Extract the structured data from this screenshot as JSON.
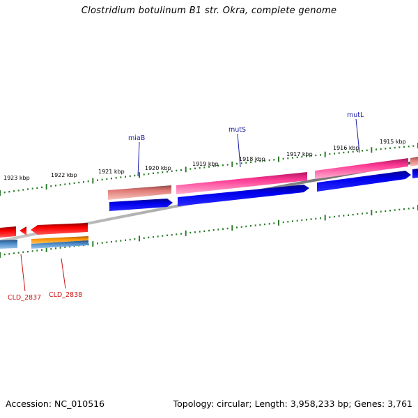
{
  "title": "Clostridium botulinum B1 str. Okra, complete genome",
  "footer": {
    "accession": "Accession: NC_010516",
    "summary": "Topology: circular; Length: 3,958,233 bp; Genes: 3,761"
  },
  "kbp_labels": [
    "1923 kbp",
    "1922 kbp",
    "1921 kbp",
    "1920 kbp",
    "1919 kbp",
    "1918 kbp",
    "1917 kbp",
    "1916 kbp",
    "1915 kbp"
  ],
  "upper_gene_labels": [
    {
      "text": "miaB",
      "color": "#1a1aa8"
    },
    {
      "text": "mutS",
      "color": "#1a1aa8"
    },
    {
      "text": "mutL",
      "color": "#1a1aa8"
    }
  ],
  "lower_gene_labels": [
    {
      "text": "CLD_2837",
      "color": "#cc1111"
    },
    {
      "text": "CLD_2838",
      "color": "#cc1111"
    }
  ],
  "colors": {
    "backbone": "#808080",
    "ticks": "#2e7d2e",
    "blue_cds": "#0000ee",
    "red_cds": "#ee0000",
    "pink_gene": "#ee2277",
    "salmon_gene": "#d9706a",
    "orange_gene": "#f08a00",
    "steel_gene": "#4a82b8"
  }
}
